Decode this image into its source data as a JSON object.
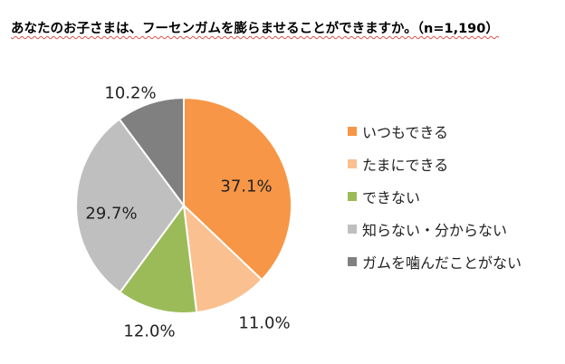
{
  "chart_data": {
    "type": "pie",
    "title": "あなたのお子さまは、フーセンガムを膨らませることができますか。（n=1,190）",
    "categories": [
      "いつもできる",
      "たまにできる",
      "できない",
      "知らない・分からない",
      "ガムを噛んだことがない"
    ],
    "values": [
      37.1,
      11.0,
      12.0,
      29.7,
      10.2
    ],
    "value_labels": [
      "37.1%",
      "11.0%",
      "12.0%",
      "29.7%",
      "10.2%"
    ],
    "colors": [
      "#f79646",
      "#fac090",
      "#9bbb59",
      "#bfbfbf",
      "#808080"
    ],
    "legend_position": "right"
  }
}
